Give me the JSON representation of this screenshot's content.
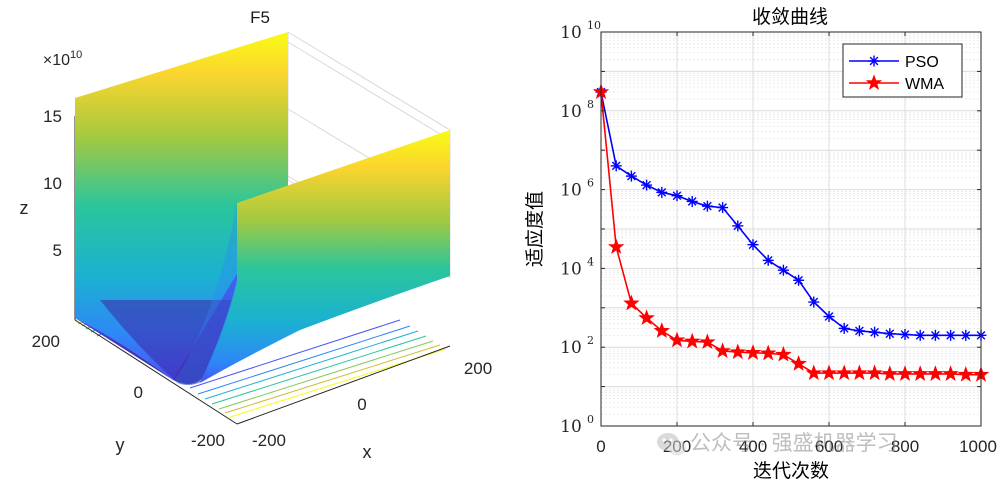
{
  "chart_data": [
    {
      "type": "surface3d",
      "title": "F5",
      "xlabel": "x",
      "ylabel": "y",
      "zlabel": "z",
      "z_exponent_label": "×10",
      "z_exponent_power": "10",
      "x_ticks": [
        "-200",
        "0",
        "200"
      ],
      "y_ticks": [
        "-200",
        "0",
        "200"
      ],
      "z_ticks": [
        "5",
        "10",
        "15"
      ],
      "z_max_display": 15.5,
      "colormap": [
        "#3e26a8",
        "#4653f4",
        "#2e87f7",
        "#1bb2d0",
        "#2bc59c",
        "#80cb58",
        "#d4bb2e",
        "#fad52e",
        "#f9fb15"
      ],
      "has_contour_projection": true
    },
    {
      "type": "line",
      "title": "收敛曲线",
      "xlabel": "迭代次数",
      "ylabel": "适应度值",
      "yscale": "log",
      "xlim": [
        0,
        1000
      ],
      "ylim_exponents": [
        0,
        10
      ],
      "x_ticks": [
        "0",
        "200",
        "400",
        "600",
        "800",
        "1000"
      ],
      "y_tick_base": "10",
      "y_tick_exponents": [
        "0",
        "2",
        "4",
        "6",
        "8",
        "10"
      ],
      "grid": true,
      "legend_position": "top-right",
      "x": [
        0,
        40,
        80,
        120,
        160,
        200,
        240,
        280,
        320,
        360,
        400,
        440,
        480,
        520,
        560,
        600,
        640,
        680,
        720,
        760,
        800,
        840,
        880,
        920,
        960,
        1000
      ],
      "series": [
        {
          "name": "PSO",
          "color": "#0000ff",
          "marker": "asterisk",
          "values": [
            300000000.0,
            4000000.0,
            2200000.0,
            1300000.0,
            850000.0,
            700000.0,
            500000.0,
            380000.0,
            350000.0,
            120000.0,
            40000.0,
            16000.0,
            9000.0,
            5000.0,
            1400.0,
            600,
            300,
            260,
            240,
            220,
            210,
            200,
            200,
            200,
            200,
            200
          ]
        },
        {
          "name": "WMA",
          "color": "#ff0000",
          "marker": "pentagram",
          "values": [
            300000000.0,
            35000.0,
            1300.0,
            550,
            260,
            150,
            140,
            135,
            80,
            75,
            72,
            70,
            65,
            38,
            22,
            22,
            22,
            22,
            22,
            21,
            21,
            21,
            21,
            21,
            20,
            20
          ]
        }
      ]
    }
  ],
  "watermark": "公众号 · 强盛机器学习"
}
